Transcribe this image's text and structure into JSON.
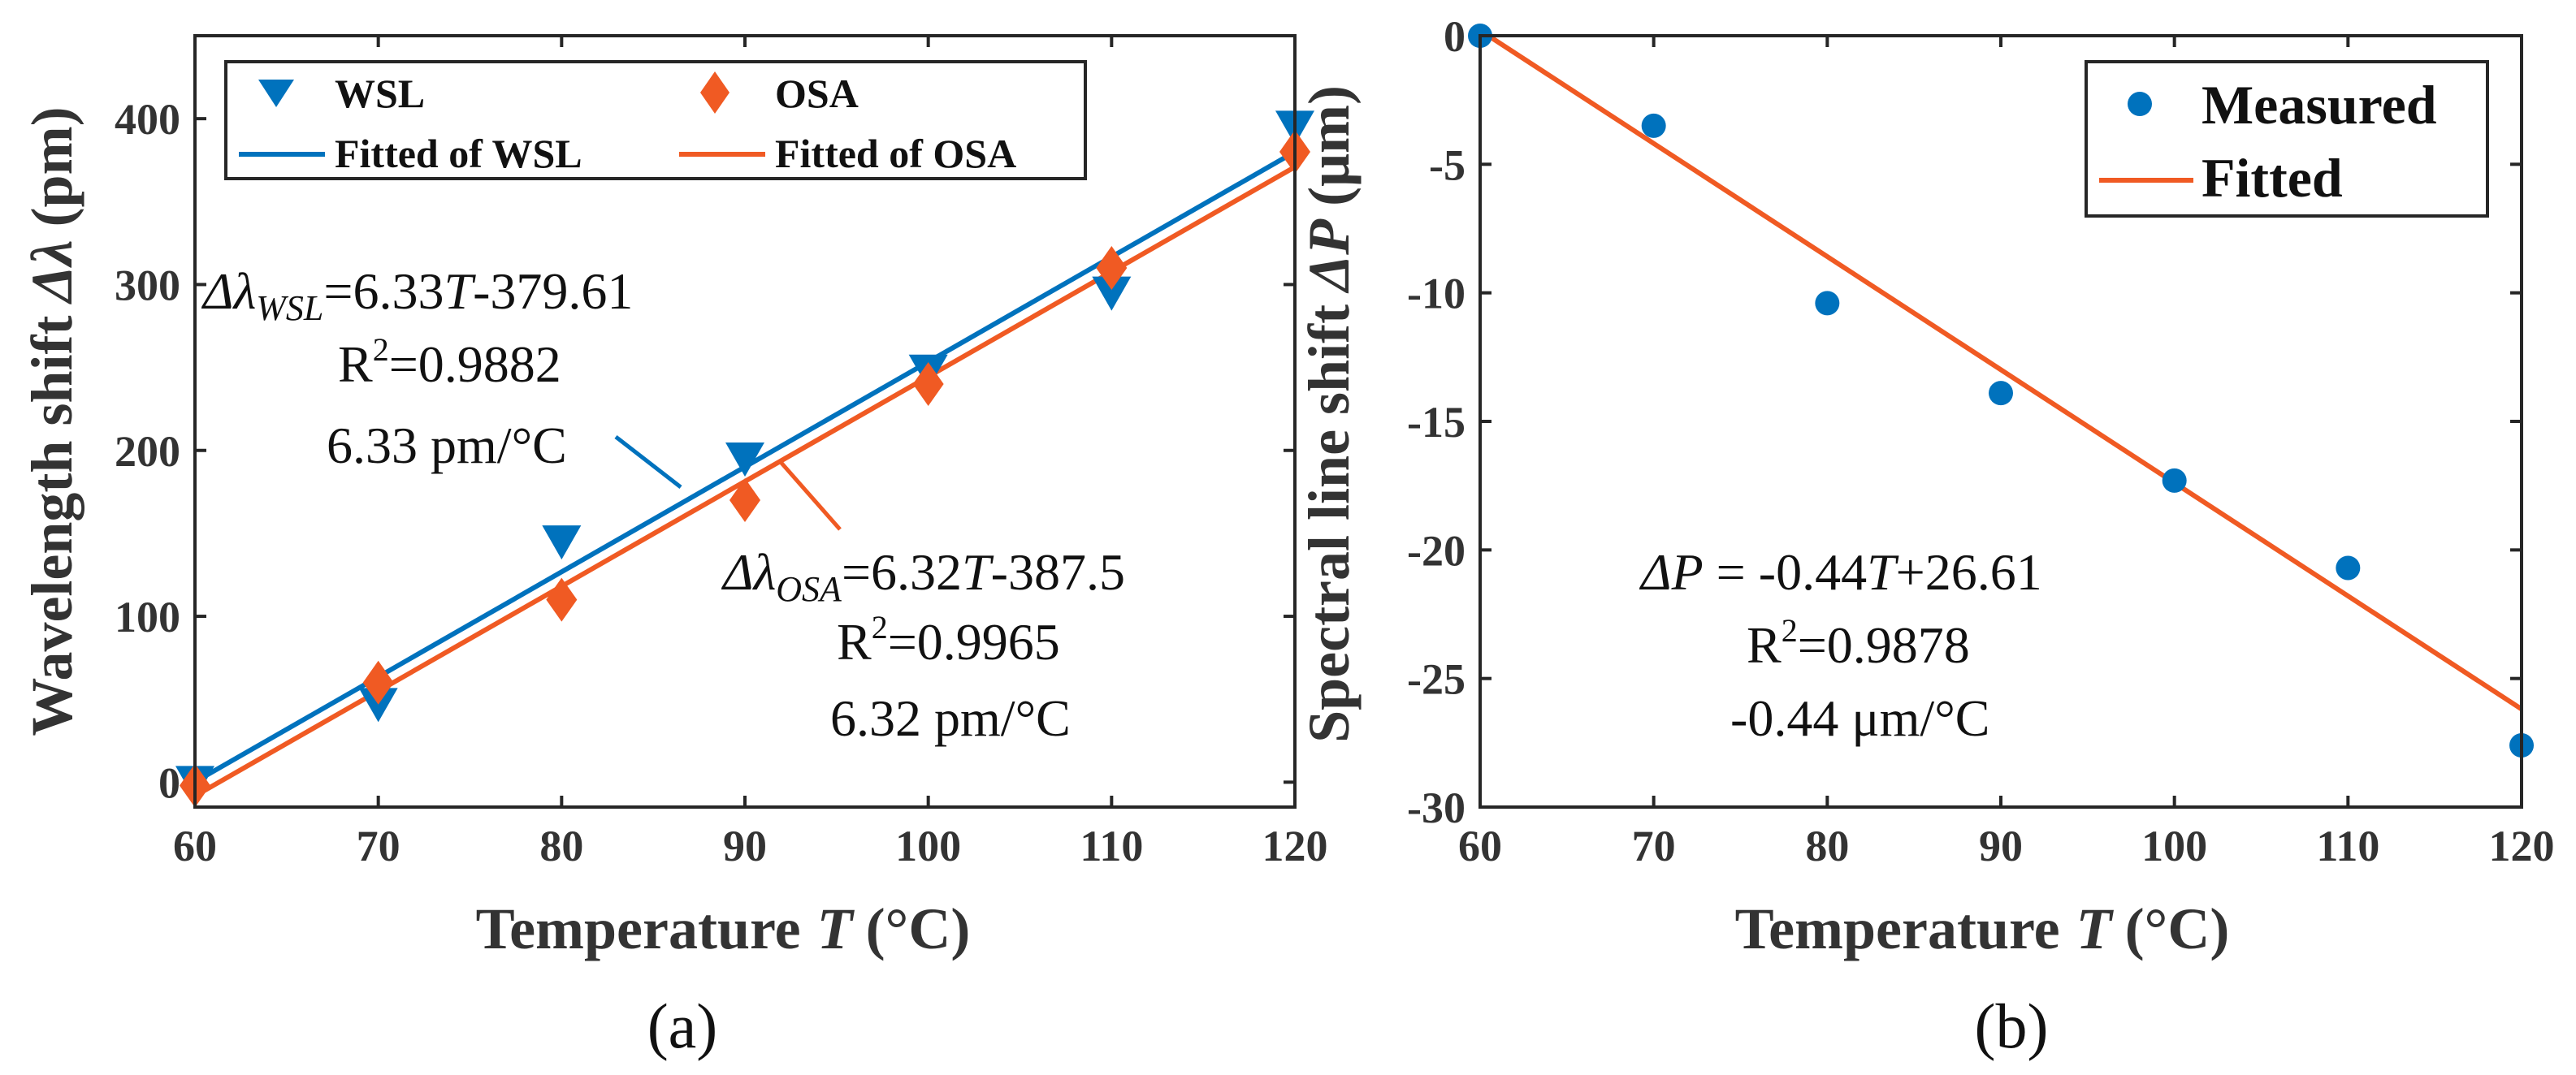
{
  "chart_data": [
    {
      "type": "scatter",
      "panel": "(a)",
      "xlabel_text": "Temperature",
      "xlabel_var": "T",
      "xlabel_unit": "(°C)",
      "ylabel_text": "Wavelength shift",
      "ylabel_var": "Δλ",
      "ylabel_unit": "(pm)",
      "xlim": [
        60,
        120
      ],
      "ylim": [
        -15,
        450
      ],
      "xticks": [
        60,
        70,
        80,
        90,
        100,
        110,
        120
      ],
      "yticks": [
        0,
        100,
        200,
        300,
        400
      ],
      "legend_position": "top",
      "series": [
        {
          "name": "WSL",
          "marker": "triangle-down",
          "color": "#0072BD",
          "x": [
            60,
            70,
            80,
            90,
            100,
            110,
            120
          ],
          "y": [
            0,
            47,
            145,
            195,
            248,
            295,
            395
          ]
        },
        {
          "name": "OSA",
          "marker": "diamond",
          "color": "#F05A23",
          "x": [
            60,
            70,
            80,
            90,
            100,
            110,
            120
          ],
          "y": [
            -2,
            60,
            110,
            170,
            240,
            310,
            380
          ]
        }
      ],
      "fits": [
        {
          "name": "Fitted of WSL",
          "color": "#0072BD",
          "slope": 6.33,
          "intercept": -379.61
        },
        {
          "name": "Fitted of OSA",
          "color": "#F05A23",
          "slope": 6.32,
          "intercept": -387.5
        }
      ],
      "annotations": {
        "wsl": {
          "delta": "Δλ",
          "sub": "WSL",
          "eq_mid": "=6.33",
          "var": "T",
          "eq_end": "-379.61",
          "r2_prefix": "R",
          "r2_sup": "2",
          "r2_value": "=0.9882",
          "sensitivity": "6.33 pm/°C"
        },
        "osa": {
          "delta": "Δλ",
          "sub": "OSA",
          "eq_mid": "=6.32",
          "var": "T",
          "eq_end": "-387.5",
          "r2_prefix": "R",
          "r2_sup": "2",
          "r2_value": "=0.9965",
          "sensitivity": "6.32 pm/°C"
        }
      }
    },
    {
      "type": "scatter",
      "panel": "(b)",
      "xlabel_text": "Temperature",
      "xlabel_var": "T",
      "xlabel_unit": "(°C)",
      "ylabel_text": "Spectral line shift",
      "ylabel_var": "ΔP",
      "ylabel_unit": "(μm)",
      "xlim": [
        60,
        120
      ],
      "ylim": [
        -30,
        0
      ],
      "xticks": [
        60,
        70,
        80,
        90,
        100,
        110,
        120
      ],
      "yticks": [
        0,
        -5,
        -10,
        -15,
        -20,
        -25,
        -30
      ],
      "legend_position": "top-right",
      "series": [
        {
          "name": "Measured",
          "marker": "circle",
          "color": "#0072BD",
          "x": [
            60,
            70,
            80,
            90,
            100,
            110,
            120
          ],
          "y": [
            0,
            -3.5,
            -10.4,
            -13.9,
            -17.3,
            -20.7,
            -27.6
          ]
        }
      ],
      "fits": [
        {
          "name": "Fitted",
          "color": "#F05A23",
          "slope": -0.44,
          "intercept": 26.61
        }
      ],
      "annotations": {
        "eq_delta": "ΔP",
        "eq_mid": " = -0.44",
        "eq_var": "T",
        "eq_end": "+26.61",
        "r2_prefix": "R",
        "r2_sup": "2",
        "r2_value": "=0.9878",
        "sensitivity": "-0.44 μm/°C"
      }
    }
  ],
  "colors": {
    "blue": "#0072BD",
    "orange": "#F05A23",
    "axis": "#262626"
  }
}
